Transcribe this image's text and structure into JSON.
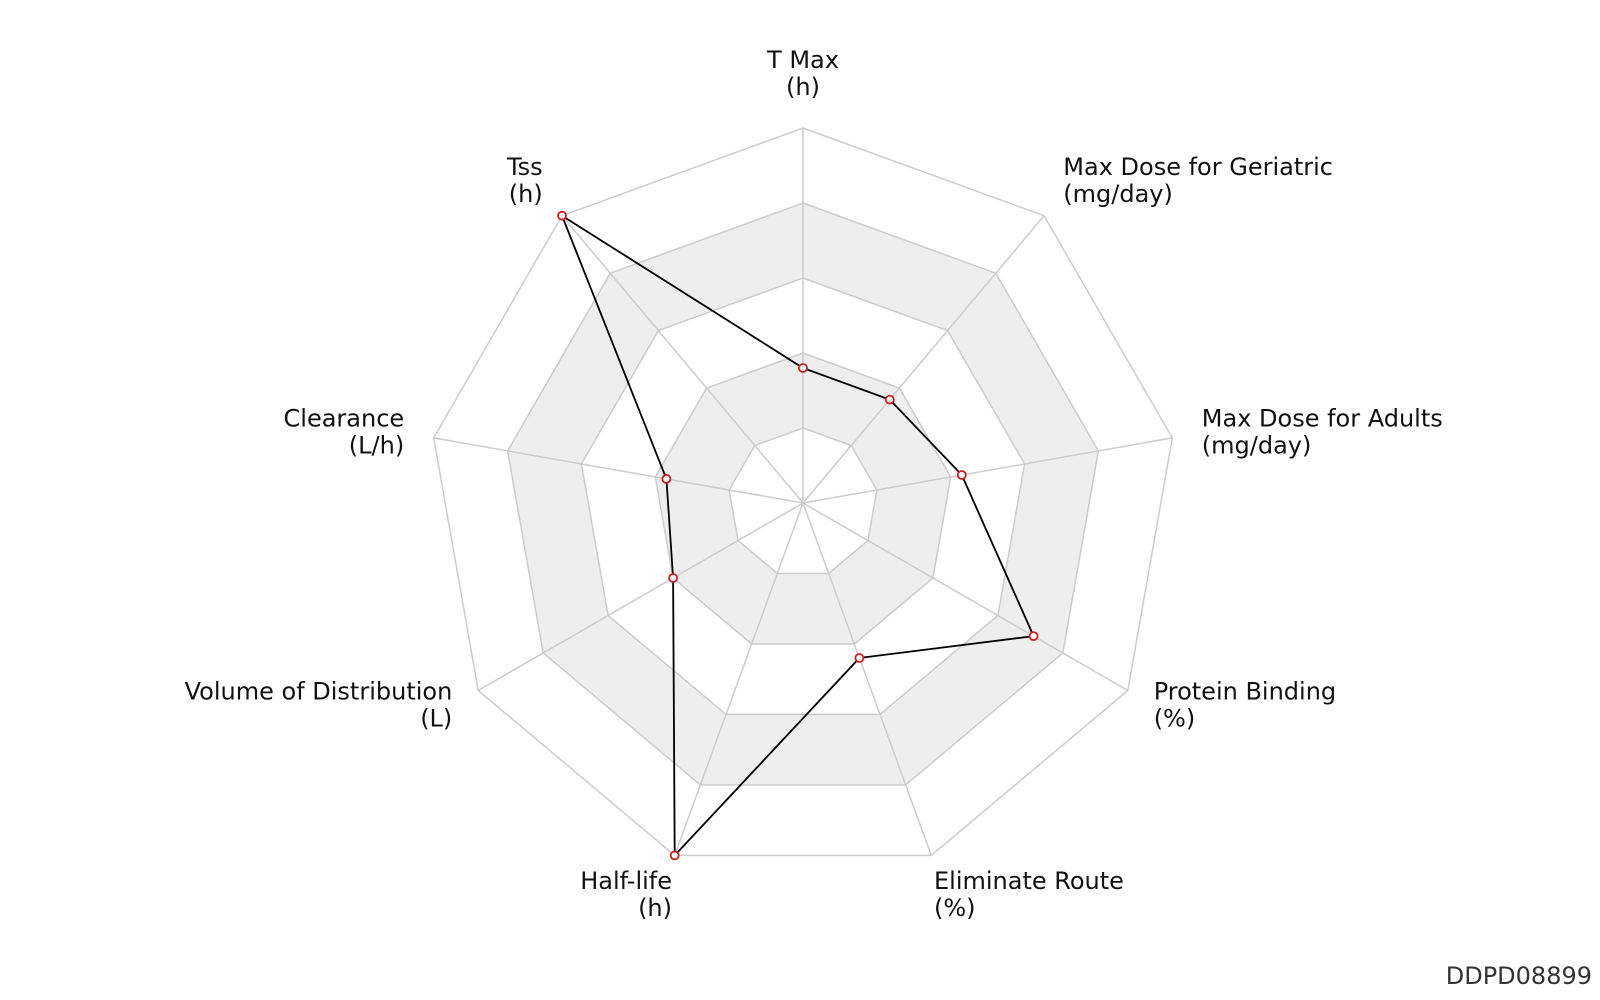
{
  "footer": {
    "id_text": "DDPD08899"
  },
  "colors": {
    "band_fill": "#eeeeee",
    "grid_stroke": "#cccccc",
    "series_stroke": "#000000",
    "marker_stroke": "#cc1f1f",
    "marker_fill": "#ffffff"
  },
  "chart_data": {
    "type": "radar",
    "title": "",
    "rings": 5,
    "range": [
      0,
      1
    ],
    "grid": true,
    "axes": [
      {
        "name": "T Max",
        "unit": "(h)"
      },
      {
        "name": "Max Dose for Geriatric",
        "unit": "(mg/day)"
      },
      {
        "name": "Max Dose for Adults",
        "unit": "(mg/day)"
      },
      {
        "name": "Protein Binding",
        "unit": "(%)"
      },
      {
        "name": "Eliminate Route",
        "unit": "(%)"
      },
      {
        "name": "Half-life",
        "unit": "(h)"
      },
      {
        "name": "Volume of Distribution",
        "unit": "(L)"
      },
      {
        "name": "Clearance",
        "unit": "(L/h)"
      },
      {
        "name": "Tss",
        "unit": "(h)"
      }
    ],
    "series": [
      {
        "values": [
          0.36,
          0.36,
          0.43,
          0.71,
          0.44,
          1.0,
          0.4,
          0.37,
          1.0
        ]
      }
    ]
  }
}
